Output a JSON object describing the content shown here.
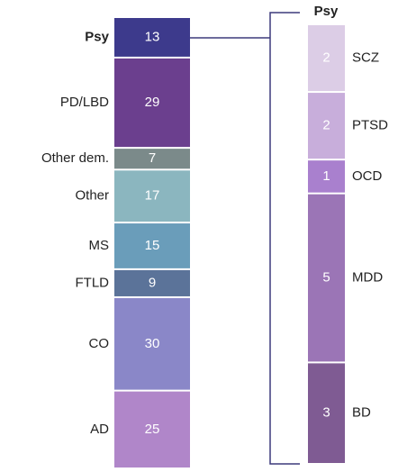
{
  "chart_data": [
    {
      "type": "stacked-bar",
      "categories": [
        "Psy",
        "PD/LBD",
        "Other dem.",
        "Other",
        "MS",
        "FTLD",
        "CO",
        "AD"
      ],
      "values": [
        13,
        29,
        7,
        17,
        15,
        9,
        30,
        25
      ],
      "colors": [
        "#3d3a8c",
        "#6b3f8e",
        "#7b8a8a",
        "#8bb6bf",
        "#6a9dba",
        "#5b7399",
        "#8a87c8",
        "#b086c9"
      ]
    },
    {
      "type": "stacked-bar",
      "title": "Psy",
      "categories": [
        "SCZ",
        "PTSD",
        "OCD",
        "MDD",
        "BD"
      ],
      "values": [
        2,
        2,
        1,
        5,
        3
      ],
      "colors": [
        "#dccde6",
        "#c8aedb",
        "#a980ce",
        "#9b75b6",
        "#7f5b93"
      ]
    }
  ]
}
